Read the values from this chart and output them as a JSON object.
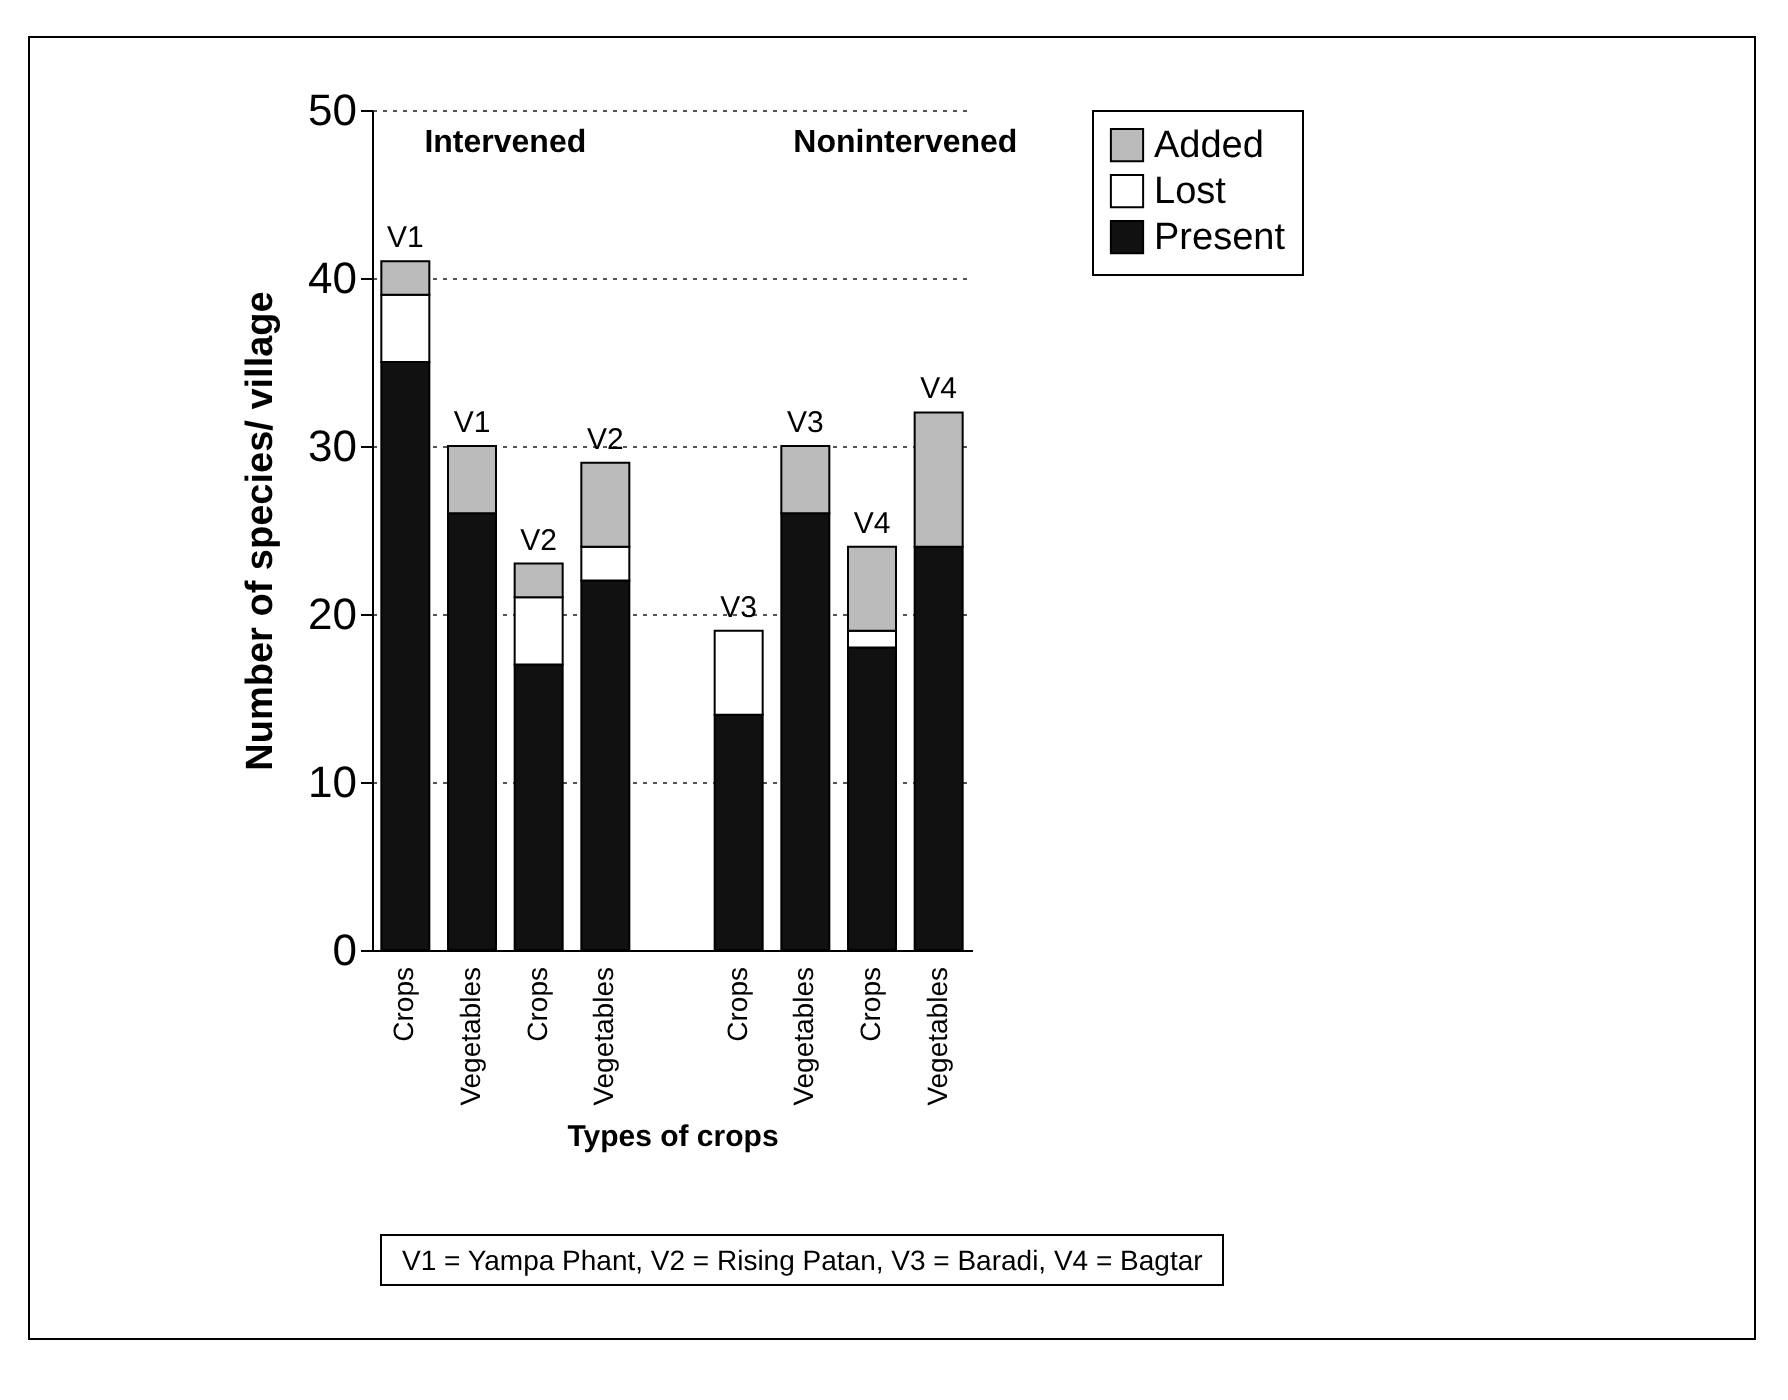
{
  "chart_data": {
    "type": "bar",
    "stacked": true,
    "xlabel": "Types of crops",
    "ylabel": "Number of species/ village",
    "categories": [
      "Crops",
      "Vegetables",
      "Crops",
      "Vegetables",
      null,
      "Crops",
      "Vegetables",
      "Crops",
      "Vegetables"
    ],
    "series": [
      {
        "name": "Present",
        "color": "#111111",
        "values": [
          35,
          26,
          17,
          22,
          null,
          14,
          26,
          18,
          24
        ]
      },
      {
        "name": "Lost",
        "color": "#ffffff",
        "values": [
          4,
          0,
          4,
          2,
          null,
          5,
          0,
          1,
          0
        ]
      },
      {
        "name": "Added",
        "color": "#bbbbbb",
        "values": [
          2,
          4,
          2,
          5,
          null,
          0,
          4,
          5,
          8
        ]
      }
    ],
    "ylim": [
      0,
      50
    ],
    "yticks": [
      0,
      10,
      20,
      30,
      40,
      50
    ],
    "grid": "y",
    "legend": "top right",
    "annotations": [
      "V1",
      "V1",
      "V2",
      "V2",
      "V3",
      "V3",
      "V4",
      "V4",
      "Intervened",
      "Nonintervened",
      "V1 = Yampa Phant, V2 = Rising Patan, V3 = Baradi, V4 = Bagtar"
    ]
  }
}
